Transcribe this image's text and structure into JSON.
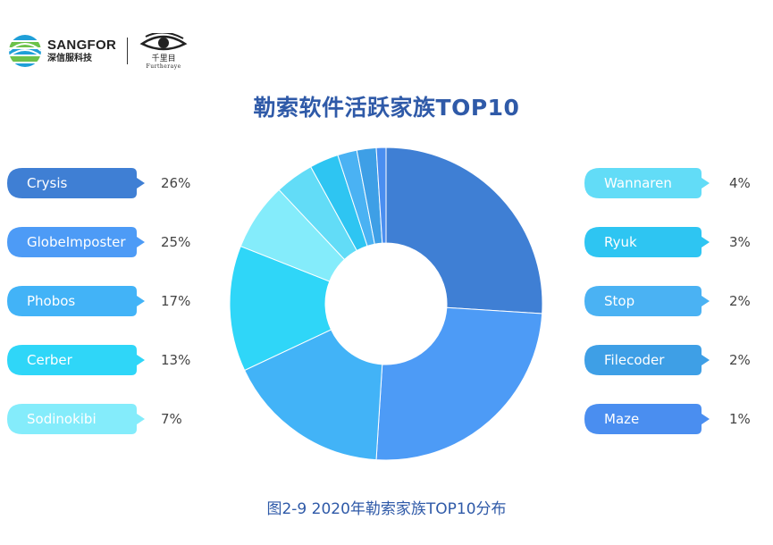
{
  "header": {
    "brand_name": "SANGFOR",
    "brand_sub": "深信服科技",
    "partner_cn": "千里目",
    "partner_en": "Furtheraye"
  },
  "title": "勒索软件活跃家族TOP10",
  "caption": "图2-9 2020年勒索家族TOP10分布",
  "chart_data": {
    "type": "pie",
    "title": "勒索软件活跃家族TOP10",
    "donut": true,
    "categories": [
      "Crysis",
      "GlobeImposter",
      "Phobos",
      "Cerber",
      "Sodinokibi",
      "Wannaren",
      "Ryuk",
      "Stop",
      "Filecoder",
      "Maze"
    ],
    "values": [
      26,
      25,
      17,
      13,
      7,
      4,
      3,
      2,
      2,
      1
    ],
    "value_labels": [
      "26%",
      "25%",
      "17%",
      "13%",
      "7%",
      "4%",
      "3%",
      "2%",
      "2%",
      "1%"
    ],
    "colors": [
      "#3f7fd4",
      "#4d9bf6",
      "#42b3f7",
      "#2fd6f8",
      "#84ecfb",
      "#62dcf7",
      "#2ec5f2",
      "#4ab2f3",
      "#3e9fe6",
      "#4a8ef0"
    ],
    "legend_placement": "left-and-right",
    "start_angle": "top, clockwise"
  }
}
